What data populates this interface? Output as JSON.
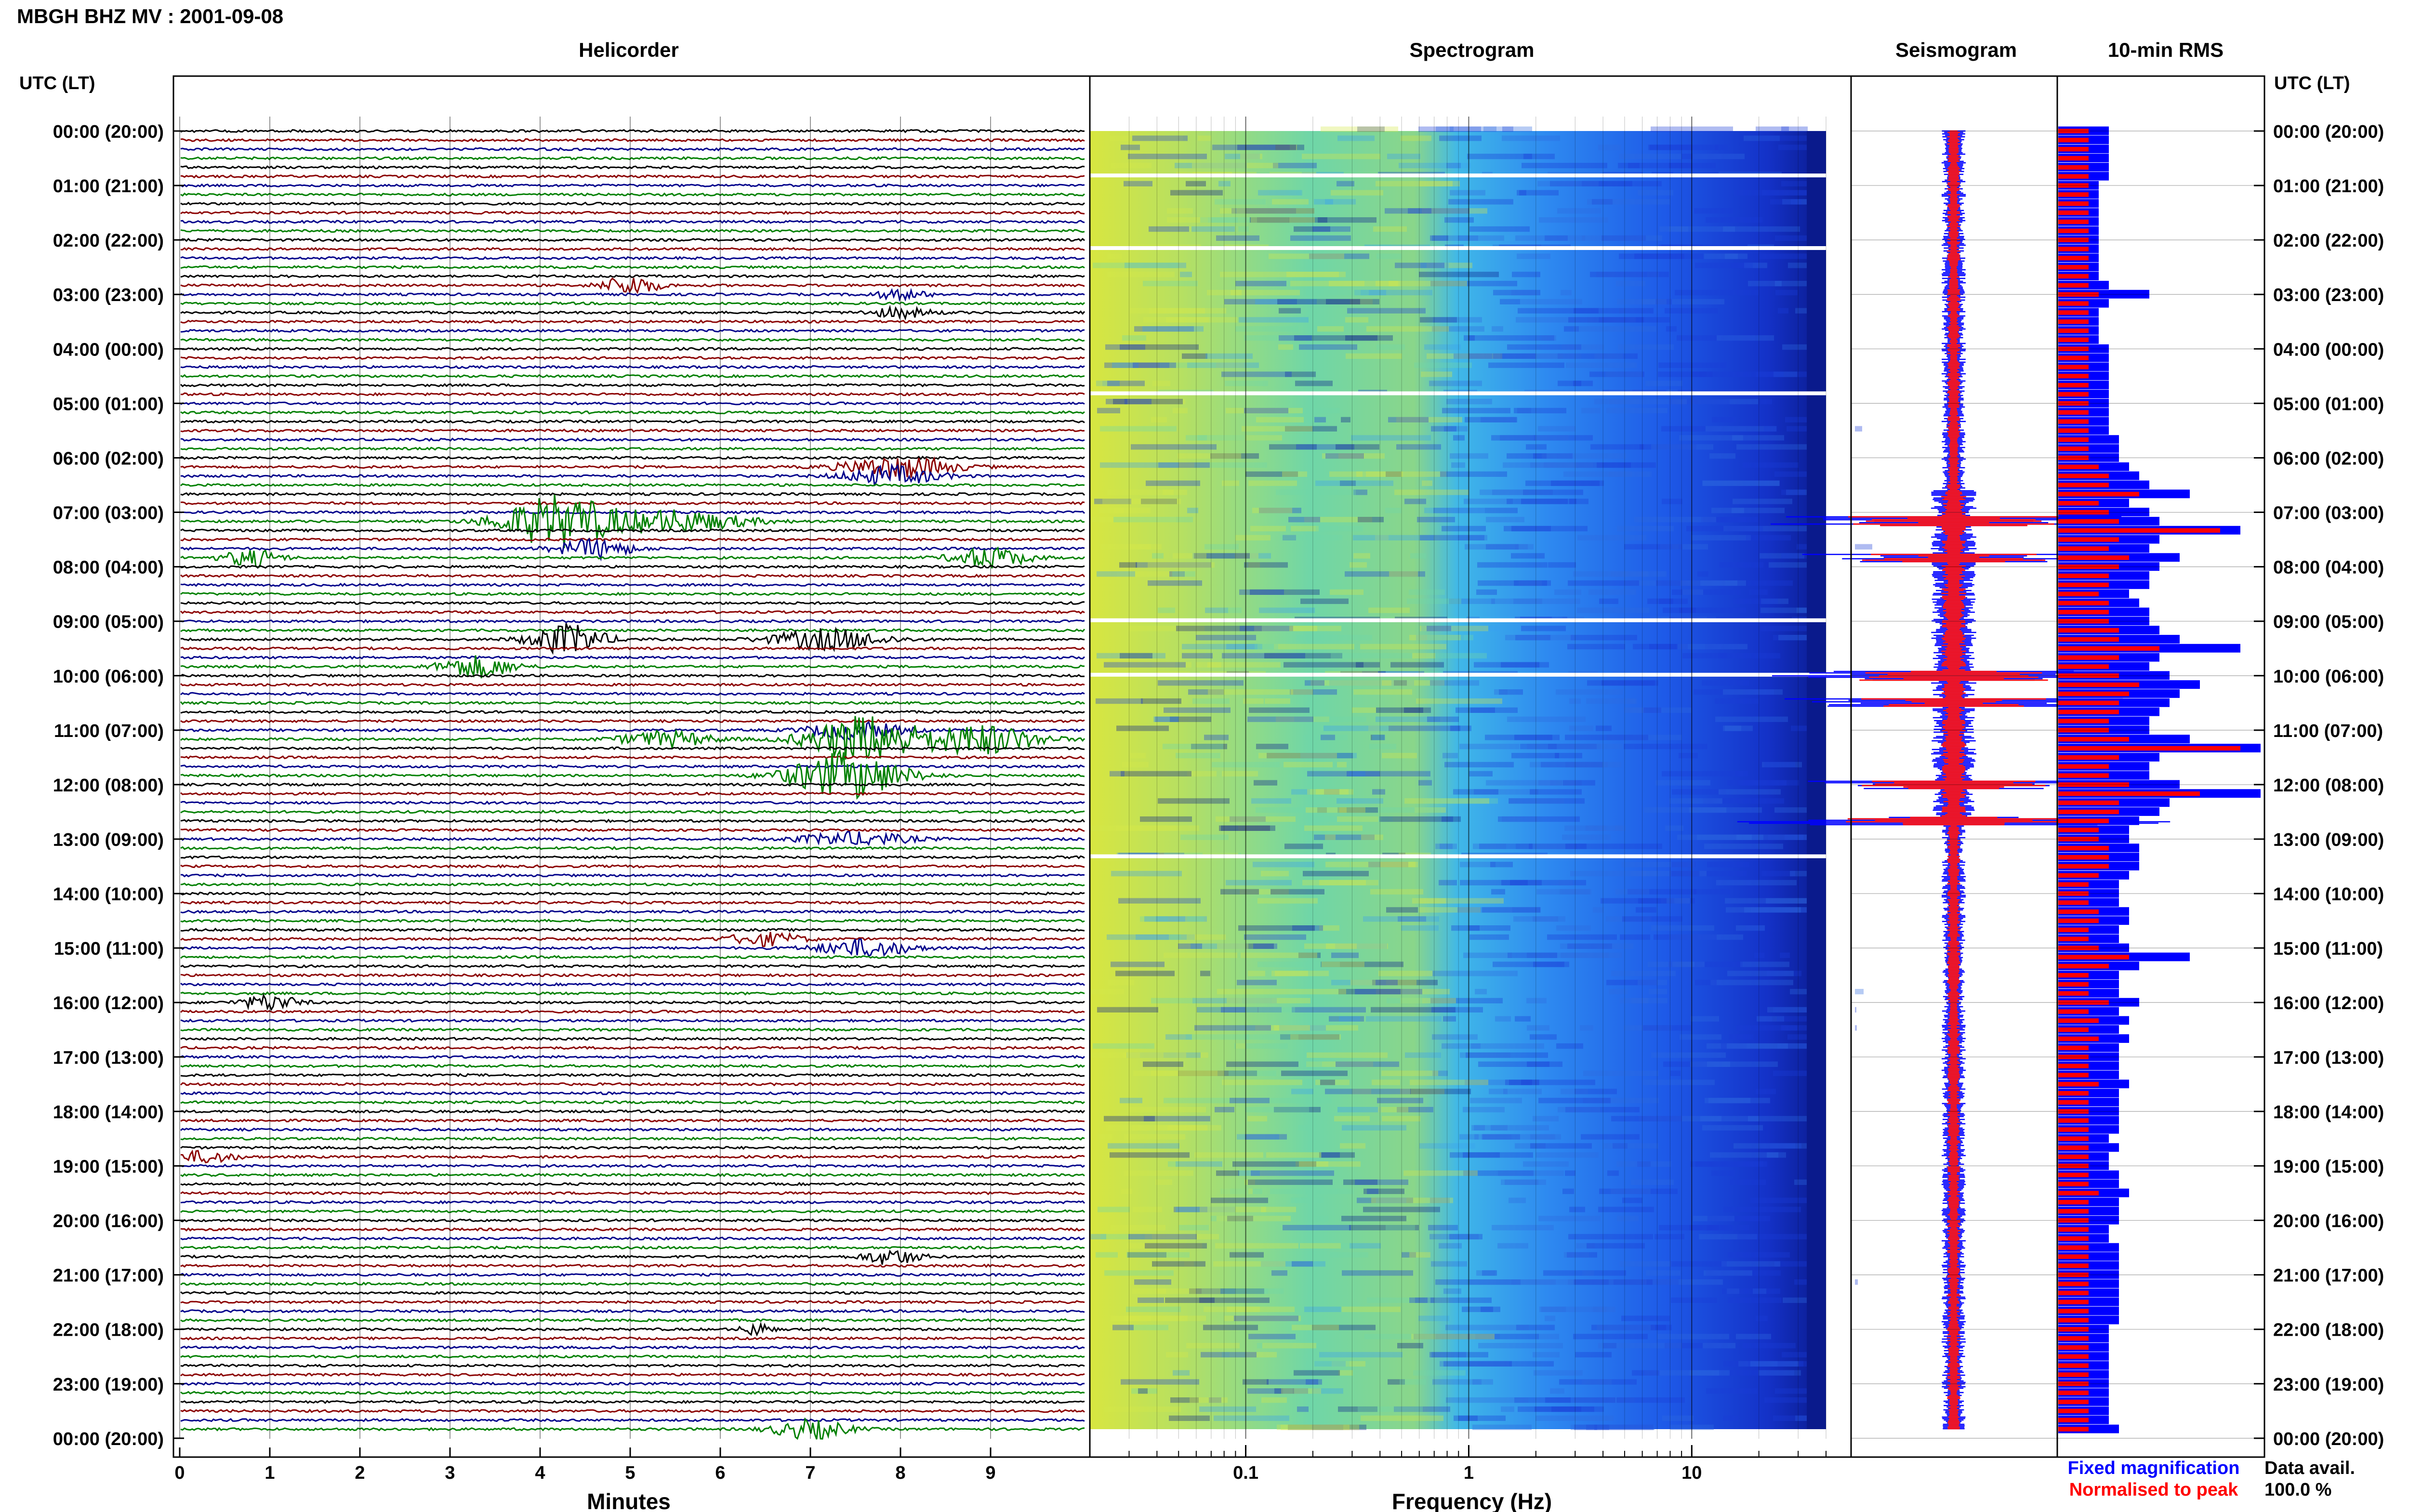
{
  "header": {
    "title": "MBGH BHZ MV : 2001-09-08"
  },
  "panels": {
    "helicorder": "Helicorder",
    "spectrogram": "Spectrogram",
    "seismogram": "Seismogram",
    "rms": "10-min RMS"
  },
  "axes": {
    "utc_header_left": "UTC (LT)",
    "utc_header_right": "UTC (LT)",
    "minutes_label": "Minutes",
    "frequency_label": "Frequency (Hz)",
    "minute_ticks": [
      "0",
      "1",
      "2",
      "3",
      "4",
      "5",
      "6",
      "7",
      "8",
      "9"
    ],
    "frequency_ticks": [
      "0.1",
      "1",
      "10"
    ],
    "time_labels": [
      "00:00 (20:00)",
      "01:00 (21:00)",
      "02:00 (22:00)",
      "03:00 (23:00)",
      "04:00 (00:00)",
      "05:00 (01:00)",
      "06:00 (02:00)",
      "07:00 (03:00)",
      "08:00 (04:00)",
      "09:00 (05:00)",
      "10:00 (06:00)",
      "11:00 (07:00)",
      "12:00 (08:00)",
      "13:00 (09:00)",
      "14:00 (10:00)",
      "15:00 (11:00)",
      "16:00 (12:00)",
      "17:00 (13:00)",
      "18:00 (14:00)",
      "19:00 (15:00)",
      "20:00 (16:00)",
      "21:00 (17:00)",
      "22:00 (18:00)",
      "23:00 (19:00)",
      "00:00 (20:00)"
    ]
  },
  "legend": {
    "fixed": "Fixed magnification",
    "normalised": "Normalised to peak"
  },
  "availability": {
    "label": "Data avail.",
    "value": "100.0 %"
  },
  "colors": {
    "trace_cycle": [
      "#000000",
      "#8b0000",
      "#00008b",
      "#008000"
    ],
    "fixed": "#0000ff",
    "normalised": "#ff0000",
    "spectrogram_low": "#00008b",
    "spectrogram_high": "#ffff00"
  },
  "chart_data": {
    "type": "helicorder-spectrogram",
    "station": "MBGH BHZ MV",
    "date": "2001-09-08",
    "rows": 144,
    "row_minutes": 10,
    "helicorder_events": [
      {
        "row": 17,
        "minute": 5.0,
        "amp": 2.2,
        "dur": 0.6
      },
      {
        "row": 18,
        "minute": 8.0,
        "amp": 1.0,
        "dur": 0.6
      },
      {
        "row": 20,
        "minute": 8.0,
        "amp": 1.1,
        "dur": 0.7
      },
      {
        "row": 37,
        "minute": 8.0,
        "amp": 2.5,
        "dur": 1.2
      },
      {
        "row": 38,
        "minute": 7.9,
        "amp": 2.2,
        "dur": 1.0
      },
      {
        "row": 43,
        "minute": 4.2,
        "amp": 6.0,
        "dur": 1.2
      },
      {
        "row": 43,
        "minute": 5.5,
        "amp": 2.5,
        "dur": 1.5
      },
      {
        "row": 46,
        "minute": 4.6,
        "amp": 2.2,
        "dur": 0.8
      },
      {
        "row": 47,
        "minute": 0.8,
        "amp": 2.0,
        "dur": 0.6
      },
      {
        "row": 47,
        "minute": 9.0,
        "amp": 2.4,
        "dur": 0.8
      },
      {
        "row": 56,
        "minute": 4.3,
        "amp": 3.5,
        "dur": 0.8
      },
      {
        "row": 56,
        "minute": 7.2,
        "amp": 2.4,
        "dur": 1.2
      },
      {
        "row": 59,
        "minute": 3.3,
        "amp": 2.5,
        "dur": 0.8
      },
      {
        "row": 66,
        "minute": 7.5,
        "amp": 2.0,
        "dur": 1.0
      },
      {
        "row": 67,
        "minute": 5.4,
        "amp": 1.8,
        "dur": 1.0
      },
      {
        "row": 67,
        "minute": 7.6,
        "amp": 5.5,
        "dur": 1.2
      },
      {
        "row": 67,
        "minute": 8.9,
        "amp": 3.5,
        "dur": 1.2
      },
      {
        "row": 71,
        "minute": 7.4,
        "amp": 5.5,
        "dur": 1.2
      },
      {
        "row": 78,
        "minute": 7.5,
        "amp": 1.5,
        "dur": 1.2
      },
      {
        "row": 89,
        "minute": 6.5,
        "amp": 1.5,
        "dur": 0.8
      },
      {
        "row": 90,
        "minute": 7.6,
        "amp": 2.0,
        "dur": 1.0
      },
      {
        "row": 96,
        "minute": 1.0,
        "amp": 1.8,
        "dur": 0.6
      },
      {
        "row": 113,
        "minute": 0.3,
        "amp": 1.4,
        "dur": 0.6
      },
      {
        "row": 124,
        "minute": 7.9,
        "amp": 1.8,
        "dur": 0.6
      },
      {
        "row": 132,
        "minute": 6.4,
        "amp": 1.5,
        "dur": 0.3
      },
      {
        "row": 143,
        "minute": 7.0,
        "amp": 2.2,
        "dur": 0.8
      }
    ],
    "spectrogram_freq_range_hz": [
      0.02,
      40
    ],
    "spectrogram_gaps_rows": [
      5,
      13,
      29,
      54,
      60,
      80
    ],
    "seismogram_spikes_rows": [
      43,
      47,
      60,
      63,
      72,
      76
    ],
    "rms_fixed": [
      5,
      5,
      5,
      5,
      5,
      5,
      4,
      4,
      4,
      4,
      4,
      4,
      4,
      4,
      4,
      4,
      4,
      5,
      9,
      5,
      4,
      4,
      4,
      4,
      5,
      5,
      5,
      5,
      5,
      5,
      5,
      5,
      5,
      5,
      6,
      6,
      6,
      7,
      8,
      9,
      13,
      7,
      9,
      10,
      18,
      10,
      9,
      12,
      10,
      9,
      9,
      7,
      8,
      9,
      9,
      10,
      12,
      18,
      10,
      9,
      11,
      14,
      12,
      11,
      10,
      9,
      9,
      13,
      20,
      10,
      9,
      9,
      12,
      20,
      11,
      10,
      8,
      7,
      7,
      8,
      8,
      8,
      7,
      6,
      6,
      6,
      7,
      7,
      6,
      6,
      7,
      13,
      8,
      6,
      6,
      6,
      8,
      6,
      7,
      6,
      7,
      6,
      6,
      6,
      6,
      7,
      6,
      6,
      6,
      6,
      6,
      5,
      6,
      5,
      5,
      6,
      6,
      7,
      6,
      6,
      6,
      5,
      5,
      6,
      6,
      6,
      6,
      6,
      6,
      6,
      6,
      6,
      5,
      5,
      5,
      5,
      5,
      5,
      5,
      5,
      5,
      5,
      5,
      6
    ],
    "rms_norm": [
      3,
      3,
      3,
      3,
      3,
      3,
      3,
      3,
      3,
      3,
      3,
      3,
      3,
      3,
      3,
      3,
      3,
      3,
      4,
      3,
      3,
      3,
      3,
      3,
      3,
      3,
      3,
      3,
      3,
      3,
      3,
      3,
      3,
      3,
      3,
      3,
      3,
      4,
      5,
      5,
      8,
      4,
      5,
      6,
      16,
      6,
      5,
      7,
      6,
      5,
      5,
      4,
      5,
      5,
      5,
      6,
      6,
      10,
      6,
      5,
      6,
      8,
      7,
      6,
      6,
      5,
      5,
      7,
      18,
      6,
      5,
      5,
      7,
      14,
      6,
      6,
      5,
      4,
      4,
      5,
      5,
      5,
      4,
      3,
      3,
      3,
      4,
      4,
      3,
      3,
      4,
      7,
      5,
      3,
      3,
      3,
      5,
      3,
      4,
      3,
      4,
      3,
      3,
      3,
      3,
      4,
      3,
      3,
      3,
      3,
      3,
      3,
      3,
      3,
      3,
      3,
      3,
      4,
      3,
      3,
      3,
      3,
      3,
      3,
      3,
      3,
      3,
      3,
      3,
      3,
      3,
      3,
      3,
      3,
      3,
      3,
      3,
      3,
      3,
      3,
      3,
      3,
      3,
      3
    ],
    "rms_max": 20
  }
}
